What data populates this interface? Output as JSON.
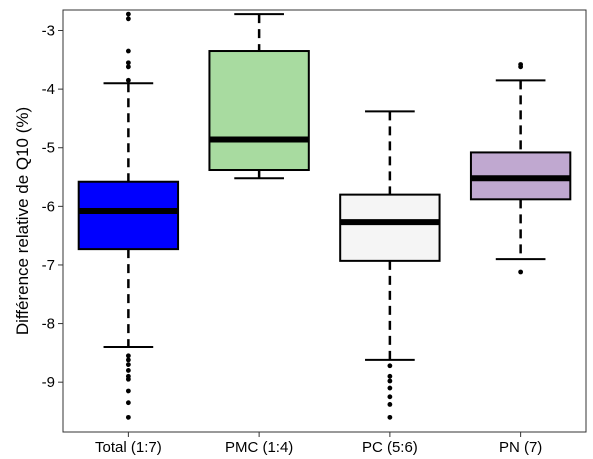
{
  "chart_data": {
    "type": "box",
    "title": "",
    "xlabel": "",
    "ylabel": "Différence relative de Q10 (%)",
    "ylim": [
      -9.85,
      -2.65
    ],
    "yticks": [
      -9,
      -8,
      -7,
      -6,
      -5,
      -4,
      -3
    ],
    "grid": false,
    "legend": "none",
    "categories": [
      "Total (1:7)",
      "PMC (1:4)",
      "PC (5:6)",
      "PN (7)"
    ],
    "boxes": [
      {
        "name": "Total (1:7)",
        "color": "#0000ff",
        "whisker_low": -8.4,
        "q1": -6.73,
        "median": -6.08,
        "q3": -5.58,
        "whisker_high": -3.9,
        "outliers": [
          -2.72,
          -2.8,
          -3.35,
          -3.55,
          -3.62,
          -3.85,
          -8.55,
          -8.62,
          -8.7,
          -8.8,
          -8.9,
          -8.95,
          -9.15,
          -9.35,
          -9.6
        ]
      },
      {
        "name": "PMC (1:4)",
        "color": "#a8dba0",
        "whisker_low": -5.52,
        "q1": -5.38,
        "median": -4.86,
        "q3": -3.35,
        "whisker_high": -2.72,
        "outliers": []
      },
      {
        "name": "PC (5:6)",
        "color": "#f5f5f5",
        "whisker_low": -8.62,
        "q1": -6.93,
        "median": -6.27,
        "q3": -5.8,
        "whisker_high": -4.38,
        "outliers": [
          -8.72,
          -8.9,
          -8.98,
          -9.1,
          -9.25,
          -9.38,
          -9.6
        ]
      },
      {
        "name": "PN (7)",
        "color": "#c0a8d0",
        "whisker_low": -6.9,
        "q1": -5.88,
        "median": -5.52,
        "q3": -5.08,
        "whisker_high": -3.85,
        "outliers": [
          -3.58,
          -3.62,
          -7.12
        ]
      }
    ]
  }
}
